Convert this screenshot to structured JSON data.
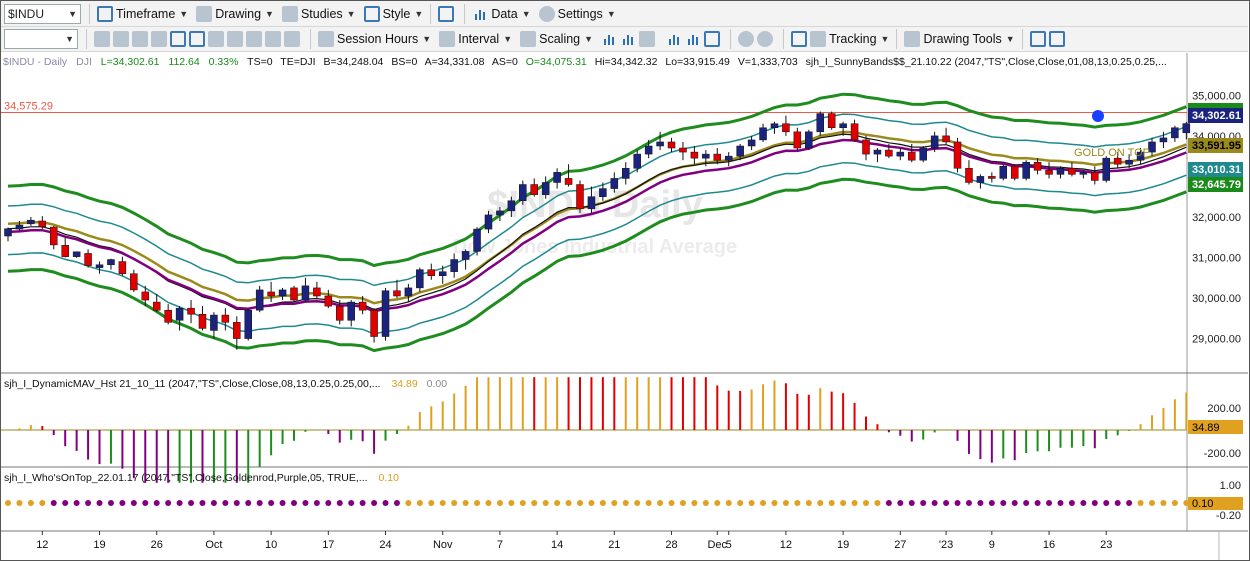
{
  "toolbar": {
    "symbol_value": "$INDU",
    "timeframe_label": "Timeframe",
    "drawing_label": "Drawing",
    "studies_label": "Studies",
    "style_label": "Style",
    "data_label": "Data",
    "settings_label": "Settings",
    "session_hours_label": "Session Hours",
    "interval_label": "Interval",
    "scaling_label": "Scaling",
    "tracking_label": "Tracking",
    "drawing_tools_label": "Drawing Tools"
  },
  "header": {
    "symbol": "$INDU - Daily",
    "exchange": "DJI",
    "last": "L=34,302.61",
    "change": "112.64",
    "pct": "0.33%",
    "ts": "TS=0",
    "te": "TE=DJI",
    "bid": "B=34,248.04",
    "bs": "BS=0",
    "ask": "A=34,331.08",
    "as": "AS=0",
    "open": "O=34,075.31",
    "hi": "Hi=34,342.32",
    "lo": "Lo=33,915.49",
    "vol": "V=1,333,703",
    "study": "sjh_I_SunnyBands$$_21.10.22 (2047,\"TS\",Close,Close,01,08,13,0.25,0.25,..."
  },
  "panel2_header": {
    "text": "sjh_I_DynamicMAV_Hst 21_10_11 (2047,\"TS\",Close,Close,08,13,0.25,0.25,00,...",
    "v1": "34.89",
    "v2": "0.00"
  },
  "panel3_header": {
    "text": "sjh_I_Who'sOnTop_22.01.17 (2047,\"TS\",Close,Goldenrod,Purple,05, TRUE,...",
    "v1": "0.10"
  },
  "watermark": {
    "title": "$INDU Daily",
    "subtitle": "Dow Jones Industrial Average"
  },
  "annotation": "GOLD ON TOP",
  "hline_label": "34,575.29",
  "price_badges": [
    "34,302.61",
    "33,591.95",
    "33,010.31",
    "32,645.79"
  ],
  "ind_badge": "34.89",
  "dot_badge": "0.10",
  "colors": {
    "up": "#1a237e",
    "down": "#e00000",
    "green": "#1e8c1e",
    "teal": "#1f8a8e",
    "gold": "#9a8a1c",
    "purple": "#800080",
    "hline": "#e85a4a",
    "goldenrod": "#e0a020"
  },
  "chart_data": {
    "type": "candlestick",
    "y_axis_ticks": [
      "35,000.00",
      "34,000.00",
      "33,000.00",
      "32,000.00",
      "31,000.00",
      "30,000.00",
      "29,000.00"
    ],
    "ylim": [
      28200,
      35600
    ],
    "horizontal_line": 34575.29,
    "x_tick_labels": [
      "12",
      "19",
      "26",
      "Oct",
      "10",
      "17",
      "24",
      "Nov",
      "7",
      "14",
      "21",
      "28",
      "Dec",
      "5",
      "12",
      "19",
      "27",
      "'23",
      "9",
      "16",
      "23"
    ],
    "x_tick_index": [
      3,
      8,
      13,
      18,
      23,
      28,
      33,
      38,
      43,
      48,
      53,
      58,
      62,
      63,
      68,
      73,
      78,
      82,
      86,
      91,
      96
    ],
    "ohlc": [
      [
        31530,
        31740,
        31400,
        31710
      ],
      [
        31700,
        31900,
        31650,
        31800
      ],
      [
        31830,
        32000,
        31780,
        31920
      ],
      [
        31900,
        32020,
        31700,
        31760
      ],
      [
        31750,
        31780,
        31200,
        31310
      ],
      [
        31300,
        31500,
        31000,
        31020
      ],
      [
        31020,
        31150,
        30990,
        31140
      ],
      [
        31100,
        31200,
        30750,
        30800
      ],
      [
        30750,
        30900,
        30600,
        30820
      ],
      [
        30820,
        30970,
        30700,
        30950
      ],
      [
        30900,
        31020,
        30550,
        30600
      ],
      [
        30600,
        30700,
        30150,
        30200
      ],
      [
        30150,
        30300,
        29800,
        29950
      ],
      [
        29900,
        30100,
        29650,
        29700
      ],
      [
        29700,
        29850,
        29350,
        29400
      ],
      [
        29450,
        29800,
        29200,
        29750
      ],
      [
        29750,
        29950,
        29380,
        29600
      ],
      [
        29600,
        29800,
        29200,
        29250
      ],
      [
        29200,
        29650,
        29000,
        29580
      ],
      [
        29580,
        29750,
        29200,
        29400
      ],
      [
        29400,
        29550,
        28725,
        29000
      ],
      [
        29000,
        29730,
        28950,
        29700
      ],
      [
        29700,
        30300,
        29650,
        30200
      ],
      [
        30150,
        30400,
        29900,
        30050
      ],
      [
        30050,
        30250,
        29950,
        30200
      ],
      [
        30250,
        30300,
        29900,
        29950
      ],
      [
        29950,
        30500,
        29900,
        30300
      ],
      [
        30250,
        30400,
        30000,
        30050
      ],
      [
        30050,
        30200,
        29750,
        29800
      ],
      [
        29800,
        29950,
        29350,
        29450
      ],
      [
        29450,
        29950,
        29300,
        29900
      ],
      [
        29900,
        30050,
        29600,
        29700
      ],
      [
        29700,
        29750,
        28900,
        29050
      ],
      [
        29050,
        30250,
        28950,
        30180
      ],
      [
        30180,
        30450,
        30000,
        30050
      ],
      [
        30050,
        30350,
        29900,
        30250
      ],
      [
        30250,
        30750,
        30150,
        30700
      ],
      [
        30700,
        30850,
        30450,
        30550
      ],
      [
        30550,
        30800,
        30350,
        30650
      ],
      [
        30650,
        31100,
        30500,
        30950
      ],
      [
        30950,
        31200,
        30700,
        31150
      ],
      [
        31150,
        31750,
        31050,
        31700
      ],
      [
        31700,
        32150,
        31600,
        32050
      ],
      [
        32050,
        32250,
        31900,
        32150
      ],
      [
        32150,
        32500,
        32000,
        32400
      ],
      [
        32400,
        32900,
        32300,
        32800
      ],
      [
        32800,
        32950,
        32500,
        32550
      ],
      [
        32550,
        33000,
        32450,
        32850
      ],
      [
        32850,
        33200,
        32700,
        33100
      ],
      [
        32950,
        33300,
        32750,
        32800
      ],
      [
        32800,
        32900,
        32100,
        32200
      ],
      [
        32200,
        32750,
        32100,
        32500
      ],
      [
        32500,
        32850,
        32400,
        32700
      ],
      [
        32700,
        33100,
        32600,
        32950
      ],
      [
        32950,
        33350,
        32800,
        33200
      ],
      [
        33200,
        33650,
        33100,
        33550
      ],
      [
        33550,
        33900,
        33450,
        33750
      ],
      [
        33750,
        34100,
        33650,
        33850
      ],
      [
        33850,
        33950,
        33600,
        33700
      ],
      [
        33700,
        33850,
        33400,
        33600
      ],
      [
        33600,
        33750,
        33300,
        33450
      ],
      [
        33450,
        33650,
        33250,
        33550
      ],
      [
        33550,
        33700,
        33300,
        33400
      ],
      [
        33400,
        33600,
        33250,
        33500
      ],
      [
        33500,
        33800,
        33400,
        33750
      ],
      [
        33750,
        34000,
        33650,
        33900
      ],
      [
        33900,
        34300,
        33850,
        34200
      ],
      [
        34200,
        34350,
        34050,
        34300
      ],
      [
        34300,
        34500,
        34000,
        34100
      ],
      [
        34100,
        34200,
        33650,
        33700
      ],
      [
        33700,
        34150,
        33650,
        34100
      ],
      [
        34100,
        34600,
        34000,
        34550
      ],
      [
        34550,
        34600,
        34150,
        34200
      ],
      [
        34200,
        34350,
        34000,
        34300
      ],
      [
        34300,
        34400,
        33850,
        33900
      ],
      [
        33900,
        34000,
        33400,
        33550
      ],
      [
        33550,
        33700,
        33350,
        33650
      ],
      [
        33650,
        33800,
        33450,
        33500
      ],
      [
        33500,
        33700,
        33400,
        33600
      ],
      [
        33600,
        33800,
        33350,
        33400
      ],
      [
        33400,
        33750,
        33350,
        33700
      ],
      [
        33700,
        34100,
        33600,
        34000
      ],
      [
        34000,
        34200,
        33800,
        33850
      ],
      [
        33850,
        33950,
        33100,
        33200
      ],
      [
        33200,
        33400,
        32800,
        32850
      ],
      [
        32850,
        33050,
        32700,
        33000
      ],
      [
        33000,
        33100,
        32850,
        32950
      ],
      [
        32950,
        33300,
        32900,
        33250
      ],
      [
        33250,
        33300,
        32900,
        32950
      ],
      [
        32950,
        33400,
        32900,
        33350
      ],
      [
        33350,
        33450,
        33050,
        33150
      ],
      [
        33150,
        33350,
        32950,
        33050
      ],
      [
        33050,
        33250,
        32950,
        33200
      ],
      [
        33200,
        33350,
        33000,
        33050
      ],
      [
        33050,
        33150,
        32950,
        33100
      ],
      [
        33100,
        33250,
        32800,
        32900
      ],
      [
        32900,
        33500,
        32850,
        33450
      ],
      [
        33450,
        33600,
        33200,
        33300
      ],
      [
        33300,
        33550,
        33200,
        33400
      ],
      [
        33400,
        33700,
        33300,
        33600
      ],
      [
        33600,
        33950,
        33500,
        33850
      ],
      [
        33850,
        34100,
        33700,
        33950
      ],
      [
        33950,
        34250,
        33850,
        34200
      ],
      [
        34075,
        34342,
        33915,
        34303
      ]
    ],
    "indicator_lines": [
      "upper band (green)",
      "inner upper (teal)",
      "gold MA",
      "black MA",
      "purple MA",
      "inner lower (teal)",
      "lower band (green)"
    ],
    "histogram_ylim": [
      -260,
      260
    ],
    "histogram_ticks": [
      "200.00",
      "0.00",
      "-200.00"
    ],
    "dot_ticks": [
      "1.00",
      "-0.20"
    ]
  }
}
